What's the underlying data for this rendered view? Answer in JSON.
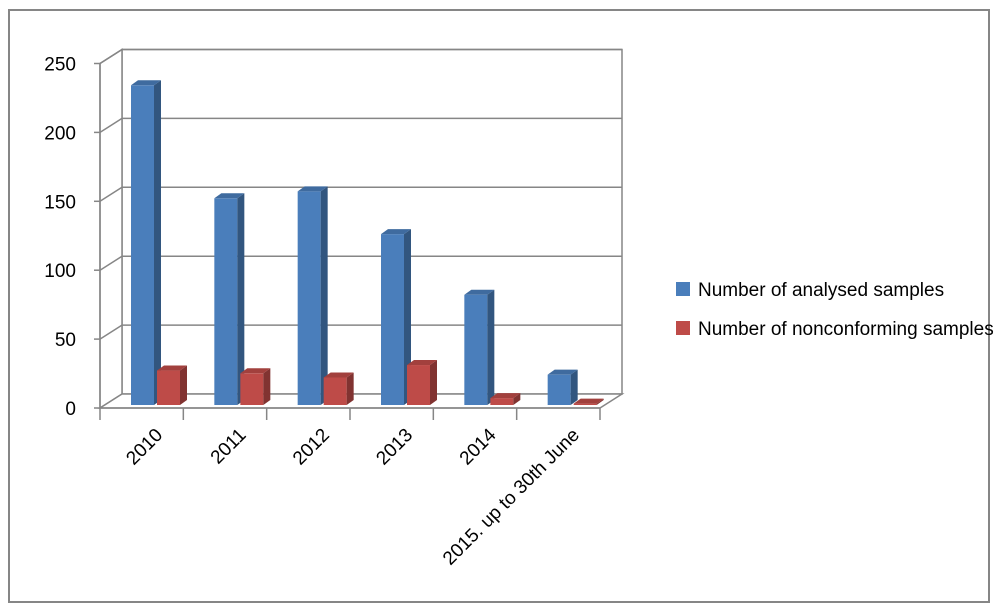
{
  "chart_data": {
    "type": "bar",
    "categories": [
      "2010",
      "2011",
      "2012",
      "2013",
      "2014",
      "2015. up to 30th June"
    ],
    "series": [
      {
        "name": "Number of analysed samples",
        "color": "#4a7ebb",
        "values": [
          232,
          150,
          155,
          124,
          80,
          22
        ]
      },
      {
        "name": "Number of nonconforming samples",
        "color": "#be4b48",
        "values": [
          25,
          23,
          20,
          29,
          5,
          1
        ]
      }
    ],
    "yticks": [
      0,
      50,
      100,
      150,
      200,
      250
    ],
    "ylim": [
      0,
      250
    ],
    "grid": true,
    "legend_position": "right",
    "style": "3d-clustered-column"
  }
}
